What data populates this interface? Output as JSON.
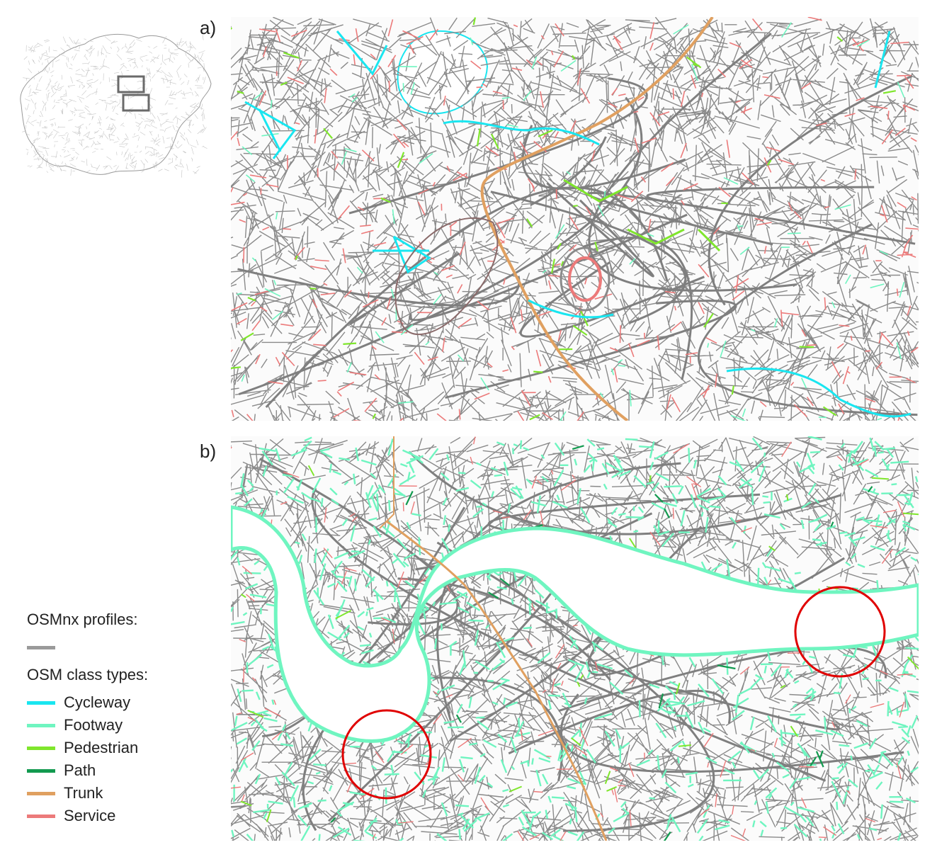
{
  "panels": [
    {
      "label": "a)"
    },
    {
      "label": "b)"
    }
  ],
  "legend": {
    "profiles_title": "OSMnx profiles:",
    "profile_color": "#9a9a9a",
    "class_title": "OSM class types:",
    "items": [
      {
        "label": "Cycleway",
        "color": "#19e6f0"
      },
      {
        "label": "Footway",
        "color": "#6ff5c0"
      },
      {
        "label": "Pedestrian",
        "color": "#7fe62c"
      },
      {
        "label": "Path",
        "color": "#129a4f"
      },
      {
        "label": "Trunk",
        "color": "#e0a060"
      },
      {
        "label": "Service",
        "color": "#ec7a7a"
      }
    ]
  },
  "colors": {
    "road": "#8a8a8a",
    "highlight_circle": "#e00000",
    "inset_box": "#6a6a6a"
  }
}
